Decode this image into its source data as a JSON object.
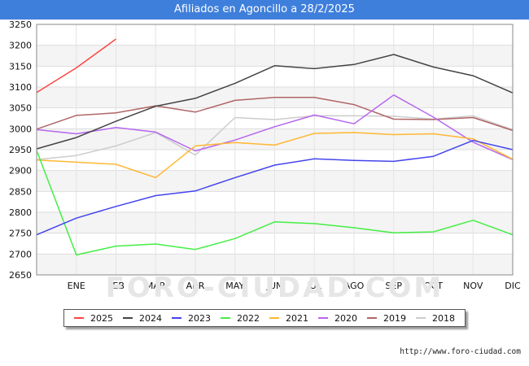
{
  "header": {
    "title": "Afiliados en Agoncillo a 28/2/2025"
  },
  "footer": {
    "url": "http://www.foro-ciudad.com"
  },
  "watermark": "FORO-CIUDAD.COM",
  "chart_data": {
    "type": "line",
    "title": "Afiliados en Agoncillo a 28/2/2025",
    "x_labels": [
      "",
      "ENE",
      "FEB",
      "MAR",
      "ABR",
      "MAY",
      "JUN",
      "JUL",
      "AGO",
      "SEP",
      "OCT",
      "NOV",
      "DIC"
    ],
    "y_ticks": [
      2650,
      2700,
      2750,
      2800,
      2850,
      2900,
      2950,
      3000,
      3050,
      3100,
      3150,
      3200,
      3250
    ],
    "ylim": [
      2650,
      3250
    ],
    "grid": true,
    "legend_position": "bottom",
    "series": [
      {
        "name": "2025",
        "color": "#ff4444",
        "values": [
          3087,
          3146,
          3215
        ]
      },
      {
        "name": "2024",
        "color": "#444444",
        "values": [
          2952,
          2979,
          3018,
          3054,
          3073,
          3109,
          3151,
          3144,
          3154,
          3178,
          3148,
          3127,
          3086
        ]
      },
      {
        "name": "2023",
        "color": "#4444ee",
        "values": [
          2746,
          2786,
          2814,
          2840,
          2851,
          2883,
          2913,
          2928,
          2924,
          2922,
          2934,
          2972,
          2950
        ]
      },
      {
        "name": "2022",
        "color": "#44ee44",
        "values": [
          2948,
          2698,
          2719,
          2724,
          2711,
          2737,
          2777,
          2773,
          2763,
          2751,
          2753,
          2781,
          2746
        ]
      },
      {
        "name": "2021",
        "color": "#ffb733",
        "values": [
          2925,
          2920,
          2915,
          2883,
          2959,
          2967,
          2961,
          2989,
          2991,
          2986,
          2988,
          2976,
          2927
        ]
      },
      {
        "name": "2020",
        "color": "#b666ee",
        "values": [
          2998,
          2988,
          3003,
          2992,
          2947,
          2973,
          3005,
          3033,
          3012,
          3081,
          3028,
          2968,
          2926
        ]
      },
      {
        "name": "2019",
        "color": "#b06666",
        "values": [
          2999,
          3032,
          3038,
          3055,
          3040,
          3068,
          3075,
          3075,
          3058,
          3023,
          3022,
          3027,
          2996
        ]
      },
      {
        "name": "2018",
        "color": "#cccccc",
        "values": [
          2926,
          2936,
          2959,
          2991,
          2937,
          3027,
          3022,
          3031,
          3031,
          3030,
          3023,
          3031,
          2998
        ]
      }
    ]
  }
}
